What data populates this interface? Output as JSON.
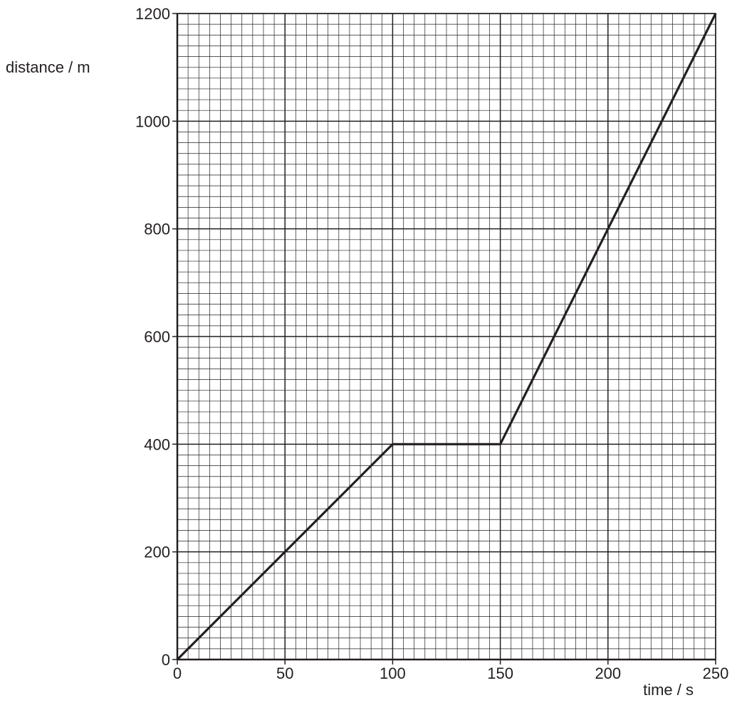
{
  "chart_data": {
    "type": "line",
    "title": "",
    "xlabel": "time / s",
    "ylabel": "distance / m",
    "xlim": [
      0,
      250
    ],
    "ylim": [
      0,
      1200
    ],
    "x_ticks": [
      0,
      50,
      100,
      150,
      200,
      250
    ],
    "y_ticks": [
      0,
      200,
      400,
      600,
      800,
      1000,
      1200
    ],
    "x_tick_labels": [
      "0",
      "50",
      "100",
      "150",
      "200",
      "250"
    ],
    "y_tick_labels": [
      "0",
      "200",
      "400",
      "600",
      "800",
      "1000",
      "1200"
    ],
    "grid": true,
    "grid_minor_step_x": 5,
    "grid_minor_step_y": 20,
    "grid_major_step_x": 50,
    "grid_major_step_y": 200,
    "legend": false,
    "series": [
      {
        "x": [
          0,
          100,
          150,
          250
        ],
        "y": [
          0,
          400,
          400,
          1200
        ]
      }
    ]
  }
}
